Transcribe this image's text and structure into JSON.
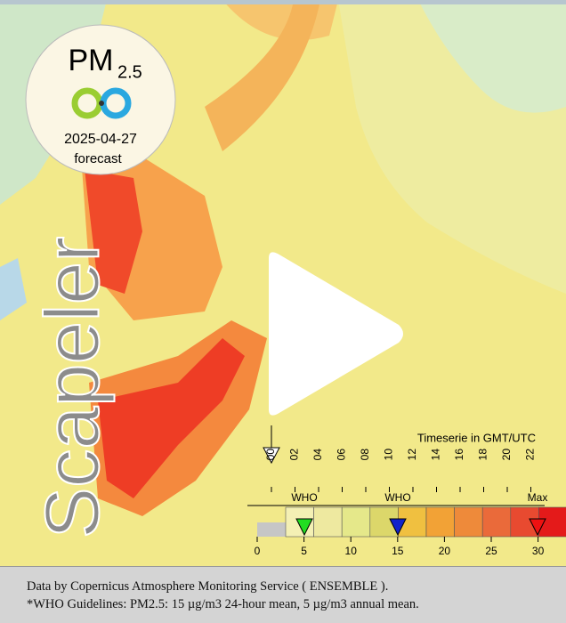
{
  "logo": {
    "title": "PM",
    "subscript": "2.5",
    "date": "2025-04-27",
    "label": "forecast"
  },
  "brand": "Scapeler",
  "timeline": {
    "title": "Timeserie in GMT/UTC",
    "hours": [
      "00",
      "02",
      "04",
      "06",
      "08",
      "10",
      "12",
      "14",
      "16",
      "18",
      "20",
      "22"
    ]
  },
  "legend": {
    "markers": [
      "WHO",
      "WHO",
      "Max"
    ],
    "ticks": [
      "0",
      "5",
      "10",
      "15",
      "20",
      "25",
      "30"
    ]
  },
  "footer": {
    "lines": [
      "Data by Copernicus Atmosphere Monitoring Service ( ENSEMBLE ).",
      "*WHO Guidelines: PM2.5: 15 µg/m3 24-hour mean, 5 µg/m3 annual mean."
    ]
  }
}
